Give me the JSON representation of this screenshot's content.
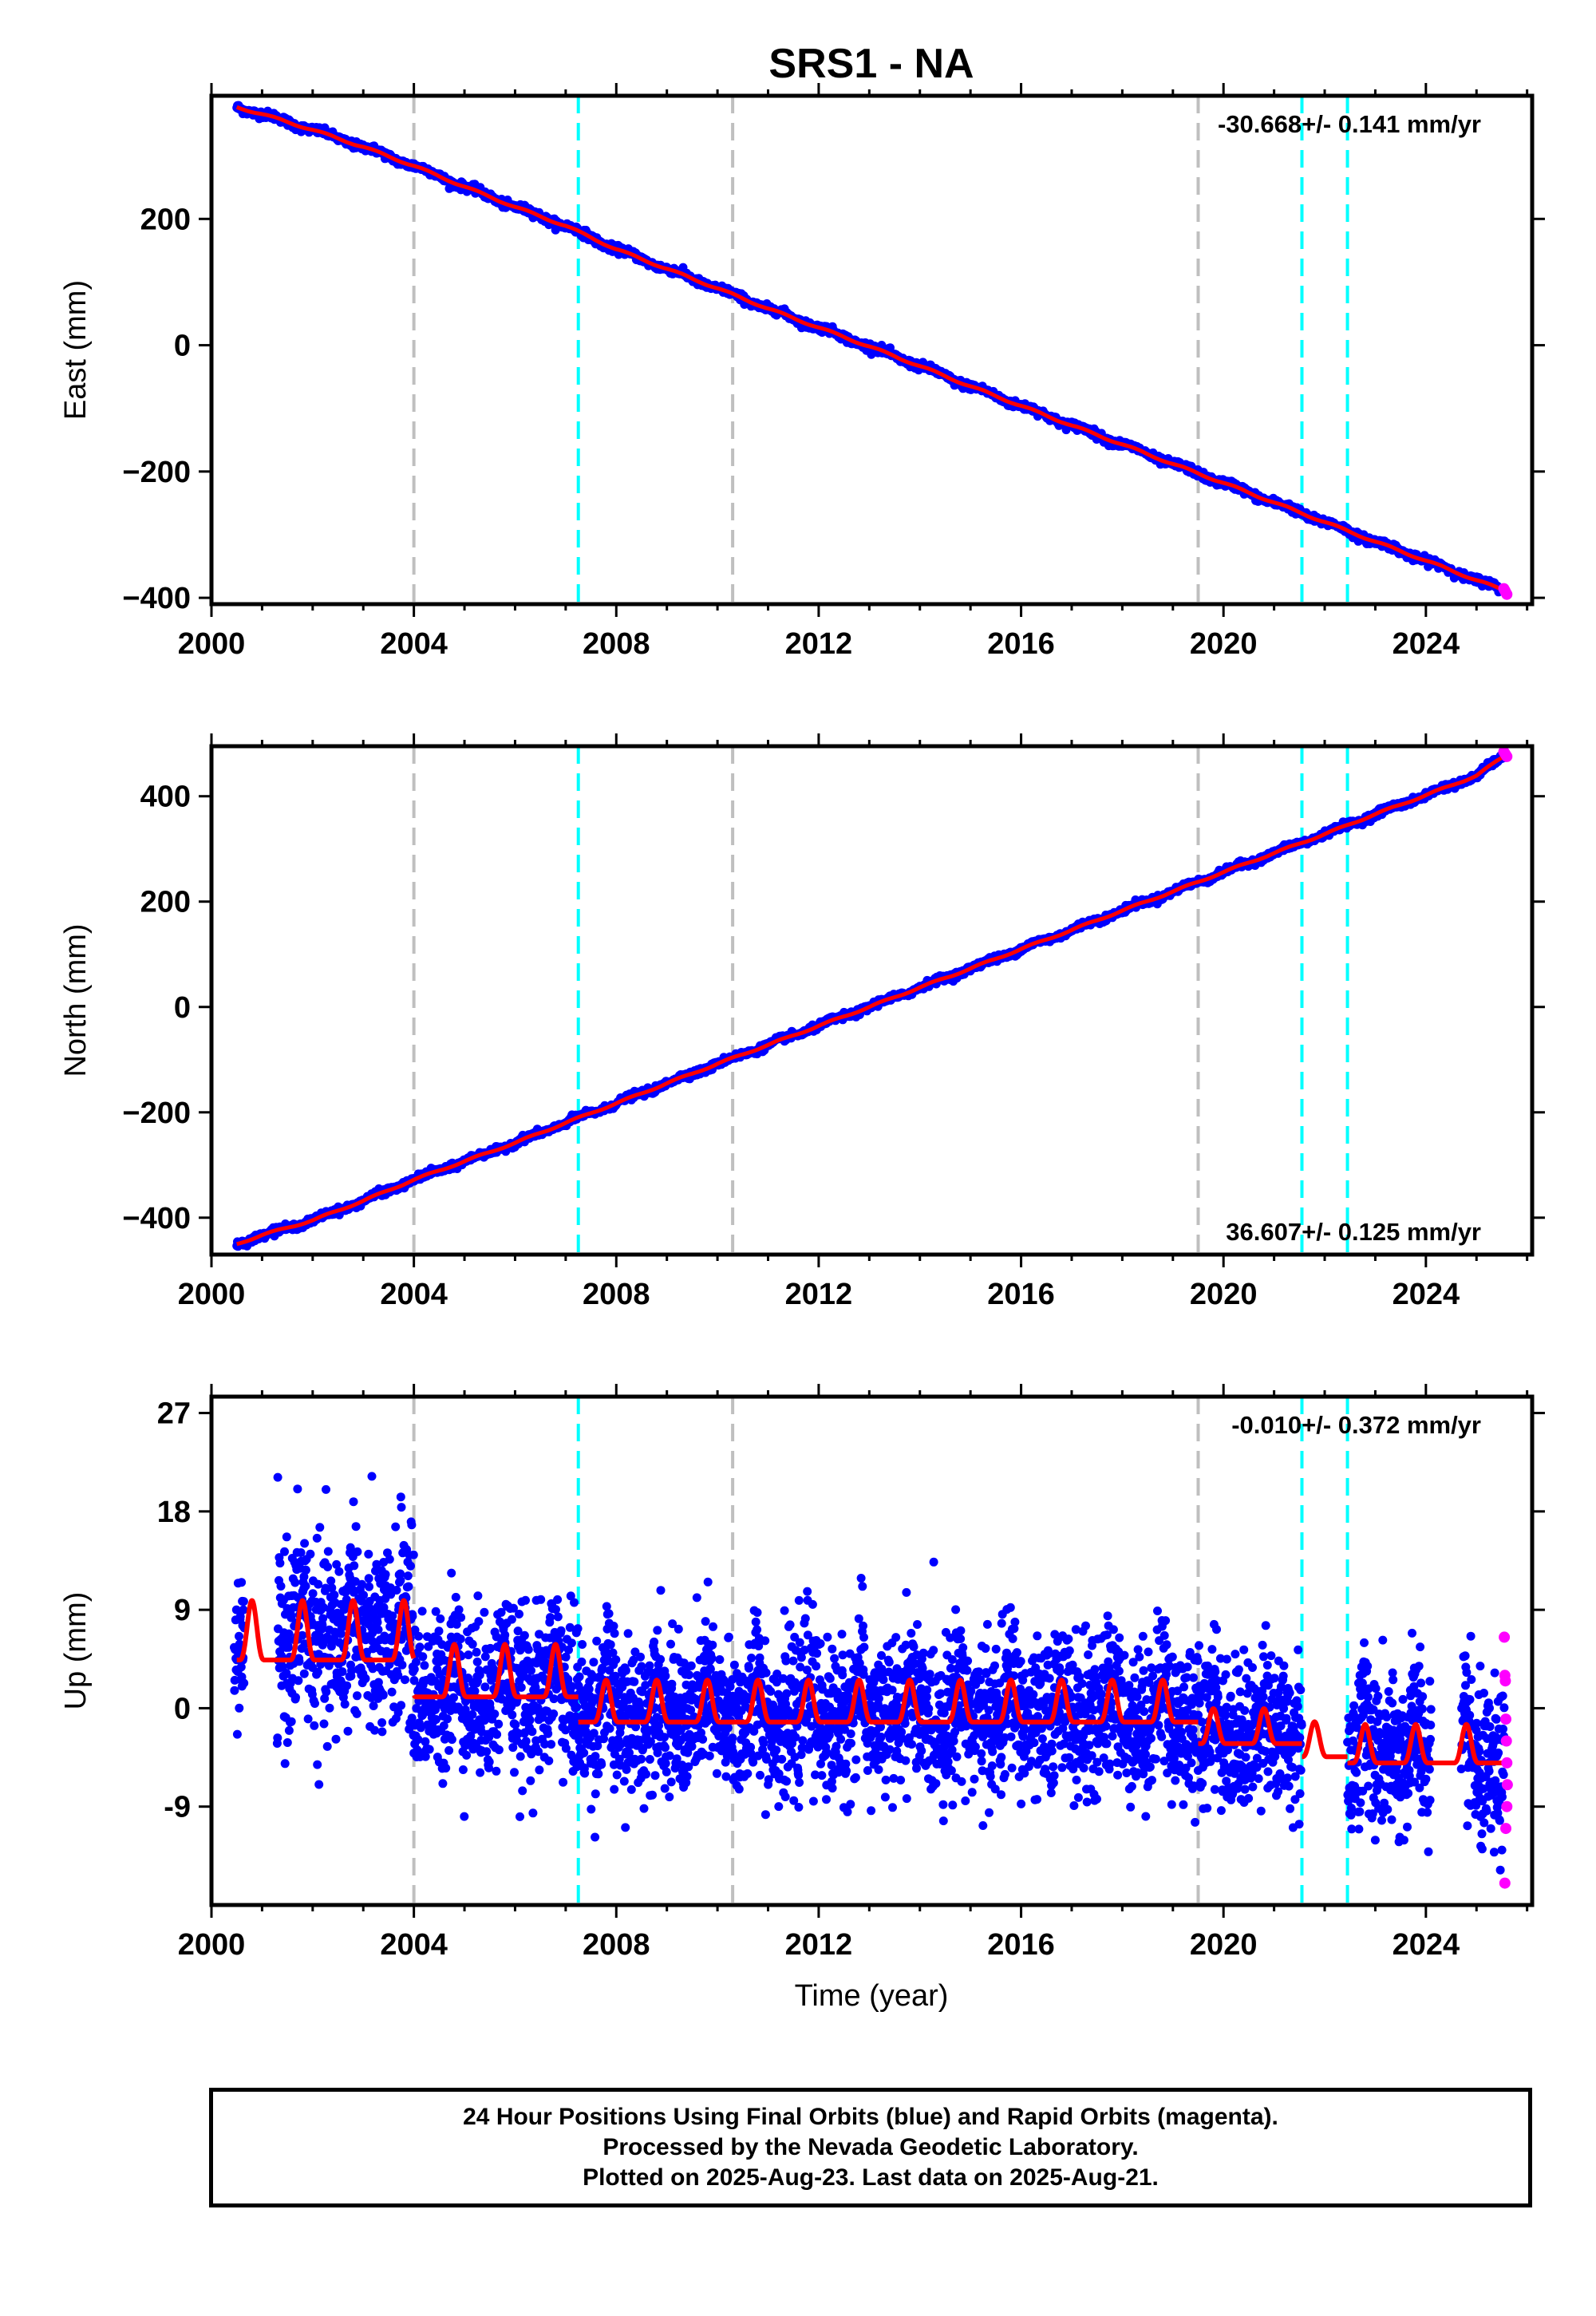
{
  "title": "SRS1 - NA",
  "xlabel": "Time (year)",
  "caption": [
    "24 Hour Positions Using Final Orbits (blue) and Rapid Orbits (magenta).",
    "Processed by the Nevada Geodetic Laboratory.",
    "Plotted on 2025-Aug-23. Last data on 2025-Aug-21."
  ],
  "colors": {
    "final": "#0000ff",
    "rapid": "#ff00ff",
    "model": "#ff0000",
    "equipment_change": "#bfbfbf",
    "earthquake": "#00ffff"
  },
  "chart_data": [
    {
      "type": "scatter",
      "panel": "east",
      "ylabel": "East (mm)",
      "rate_label": "-30.668+/- 0.141 mm/yr",
      "xlim": [
        2000,
        2026.1
      ],
      "ylim": [
        -410,
        395
      ],
      "xticks": [
        2000,
        2004,
        2008,
        2012,
        2016,
        2020,
        2024
      ],
      "yticks": [
        -400,
        -200,
        0,
        200
      ],
      "ytick_labels": [
        "−400",
        "−200",
        "0",
        "200"
      ],
      "gray_lines": [
        2004.0,
        2010.3,
        2019.5
      ],
      "cyan_lines": [
        2007.25,
        2021.55,
        2022.45
      ],
      "series": [
        {
          "points": [
            [
              2000.5,
              377
            ],
            [
              2001,
              366
            ],
            [
              2002,
              341
            ],
            [
              2003,
              314
            ],
            [
              2004,
              284
            ],
            [
              2005,
              251
            ],
            [
              2006,
              219
            ],
            [
              2007,
              189
            ],
            [
              2008,
              152
            ],
            [
              2009,
              121
            ],
            [
              2010,
              90
            ],
            [
              2011,
              58
            ],
            [
              2012,
              28
            ],
            [
              2013,
              -2
            ],
            [
              2014,
              -33
            ],
            [
              2015,
              -65
            ],
            [
              2016,
              -96
            ],
            [
              2017,
              -127
            ],
            [
              2018,
              -157
            ],
            [
              2019,
              -188
            ],
            [
              2020,
              -218
            ],
            [
              2021,
              -249
            ],
            [
              2022,
              -280
            ],
            [
              2023,
              -311
            ],
            [
              2024,
              -341
            ],
            [
              2025,
              -372
            ],
            [
              2025.6,
              -390
            ]
          ]
        }
      ]
    },
    {
      "type": "scatter",
      "panel": "north",
      "ylabel": "North (mm)",
      "rate_label": "36.607+/- 0.125 mm/yr",
      "xlim": [
        2000,
        2026.1
      ],
      "ylim": [
        -470,
        495
      ],
      "xticks": [
        2000,
        2004,
        2008,
        2012,
        2016,
        2020,
        2024
      ],
      "yticks": [
        -400,
        -200,
        0,
        200,
        400
      ],
      "ytick_labels": [
        "−400",
        "−200",
        "0",
        "200",
        "400"
      ],
      "gray_lines": [
        2004.0,
        2010.3,
        2019.5
      ],
      "cyan_lines": [
        2007.25,
        2021.55,
        2022.45
      ],
      "series": [
        {
          "points": [
            [
              2000.5,
              -450
            ],
            [
              2001,
              -433
            ],
            [
              2002,
              -405
            ],
            [
              2003,
              -368
            ],
            [
              2004,
              -328
            ],
            [
              2005,
              -293
            ],
            [
              2006,
              -258
            ],
            [
              2007,
              -220
            ],
            [
              2008,
              -183
            ],
            [
              2009,
              -145
            ],
            [
              2010,
              -108
            ],
            [
              2011,
              -72
            ],
            [
              2012,
              -36
            ],
            [
              2013,
              0
            ],
            [
              2014,
              37
            ],
            [
              2015,
              73
            ],
            [
              2016,
              110
            ],
            [
              2017,
              146
            ],
            [
              2018,
              183
            ],
            [
              2019,
              219
            ],
            [
              2020,
              256
            ],
            [
              2021,
              292
            ],
            [
              2022,
              328
            ],
            [
              2023,
              366
            ],
            [
              2024,
              402
            ],
            [
              2025,
              439
            ],
            [
              2025.6,
              480
            ]
          ]
        }
      ]
    },
    {
      "type": "scatter",
      "panel": "up",
      "ylabel": "Up (mm)",
      "rate_label": "-0.010+/- 0.372 mm/yr",
      "xlim": [
        2000,
        2026.1
      ],
      "ylim": [
        -18,
        28.5
      ],
      "xticks": [
        2000,
        2004,
        2008,
        2012,
        2016,
        2020,
        2024
      ],
      "yticks": [
        -9,
        0,
        9,
        18,
        27
      ],
      "ytick_labels": [
        "-9",
        "0",
        "9",
        "18",
        "27"
      ],
      "gray_lines": [
        2004.0,
        2010.3,
        2019.5
      ],
      "cyan_lines": [
        2007.25,
        2021.55,
        2022.45
      ],
      "segments": [
        {
          "start": 2000.45,
          "end": 2000.65,
          "mean": 6,
          "sd": 3.2
        },
        {
          "start": 2001.3,
          "end": 2004.0,
          "mean": 7,
          "sd": 4.3
        },
        {
          "start": 2004.0,
          "end": 2007.25,
          "mean": 2.2,
          "sd": 3.6
        },
        {
          "start": 2007.25,
          "end": 2019.5,
          "mean": 0,
          "sd": 3.4
        },
        {
          "start": 2019.5,
          "end": 2021.55,
          "mean": -1.5,
          "sd": 3.4
        },
        {
          "start": 2022.45,
          "end": 2024.1,
          "mean": -3.5,
          "sd": 3.6
        },
        {
          "start": 2024.7,
          "end": 2025.55,
          "mean": -5,
          "sd": 3.6
        }
      ],
      "rapid_points": [
        [
          2025.55,
          6.5
        ],
        [
          2025.56,
          3
        ],
        [
          2025.57,
          2.5
        ],
        [
          2025.58,
          -1
        ],
        [
          2025.59,
          -3
        ],
        [
          2025.6,
          -5
        ],
        [
          2025.61,
          -7
        ],
        [
          2025.6,
          -9
        ],
        [
          2025.58,
          -11
        ],
        [
          2025.56,
          -16
        ]
      ],
      "model_curve": {
        "segments": [
          {
            "start": 2000.5,
            "end": 2004.0,
            "offset": 5.5,
            "amplitude": 3.4
          },
          {
            "start": 2004.0,
            "end": 2007.25,
            "offset": 2.0,
            "amplitude": 3.0
          },
          {
            "start": 2007.25,
            "end": 2019.5,
            "offset": -0.5,
            "amplitude": 2.4
          },
          {
            "start": 2019.5,
            "end": 2021.55,
            "offset": -2.6,
            "amplitude": 2.0
          },
          {
            "start": 2021.55,
            "end": 2022.45,
            "offset": -3.8,
            "amplitude": 2.0
          },
          {
            "start": 2022.45,
            "end": 2025.6,
            "offset": -4.3,
            "amplitude": 2.2
          }
        ]
      }
    }
  ]
}
